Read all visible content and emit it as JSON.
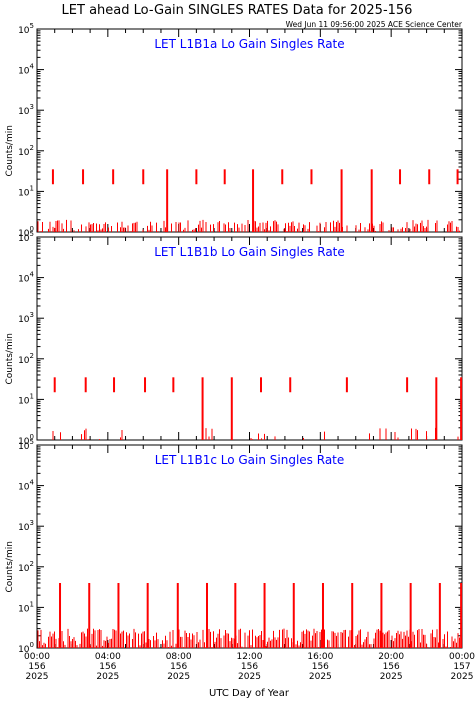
{
  "title": "LET ahead Lo-Gain SINGLES RATES Data for 2025-156",
  "timestamp": "Wed Jun 11 09:56:00 2025 ACE Science Center",
  "xlabel": "UTC Day of Year",
  "colors": {
    "axis": "#000000",
    "data": "#ff0000",
    "panel_title": "#0000ff"
  },
  "chart_data": [
    {
      "type": "line",
      "title": "LET L1B1a Lo Gain Singles Rate",
      "ylabel": "Counts/min",
      "yscale": "log",
      "ylim": [
        1,
        100000
      ],
      "ytick_exponents": [
        "0",
        "1",
        "2",
        "3",
        "4",
        "5"
      ],
      "xlim": [
        0,
        24
      ],
      "baseline": {
        "low": 1,
        "high": 2,
        "density": 0.55
      },
      "spikes": [
        {
          "x": 0.9,
          "peak": 35,
          "base": 15
        },
        {
          "x": 2.6,
          "peak": 35,
          "base": 15
        },
        {
          "x": 4.3,
          "peak": 35,
          "base": 15
        },
        {
          "x": 6.0,
          "peak": 35,
          "base": 15
        },
        {
          "x": 7.35,
          "peak": 35,
          "base": 1
        },
        {
          "x": 9.0,
          "peak": 35,
          "base": 15
        },
        {
          "x": 10.6,
          "peak": 35,
          "base": 15
        },
        {
          "x": 12.2,
          "peak": 35,
          "base": 1
        },
        {
          "x": 13.85,
          "peak": 35,
          "base": 15
        },
        {
          "x": 15.5,
          "peak": 35,
          "base": 15
        },
        {
          "x": 17.2,
          "peak": 35,
          "base": 1
        },
        {
          "x": 18.9,
          "peak": 35,
          "base": 1
        },
        {
          "x": 20.5,
          "peak": 35,
          "base": 15
        },
        {
          "x": 22.15,
          "peak": 35,
          "base": 15
        },
        {
          "x": 23.75,
          "peak": 35,
          "base": 15
        }
      ]
    },
    {
      "type": "line",
      "title": "LET L1B1b Lo Gain Singles Rate",
      "ylabel": "Counts/min",
      "yscale": "log",
      "ylim": [
        1,
        100000
      ],
      "ytick_exponents": [
        "0",
        "1",
        "2",
        "3",
        "4",
        "5"
      ],
      "xlim": [
        0,
        24
      ],
      "baseline": {
        "low": 1,
        "high": 2,
        "density": 0.1
      },
      "spikes": [
        {
          "x": 1.0,
          "peak": 35,
          "base": 15
        },
        {
          "x": 2.75,
          "peak": 35,
          "base": 15
        },
        {
          "x": 4.35,
          "peak": 35,
          "base": 15
        },
        {
          "x": 6.1,
          "peak": 35,
          "base": 15
        },
        {
          "x": 7.7,
          "peak": 35,
          "base": 15
        },
        {
          "x": 9.35,
          "peak": 35,
          "base": 1
        },
        {
          "x": 11.0,
          "peak": 35,
          "base": 1
        },
        {
          "x": 12.65,
          "peak": 35,
          "base": 15
        },
        {
          "x": 14.3,
          "peak": 35,
          "base": 15
        },
        {
          "x": 17.5,
          "peak": 35,
          "base": 15
        },
        {
          "x": 20.9,
          "peak": 35,
          "base": 15
        },
        {
          "x": 22.55,
          "peak": 35,
          "base": 1
        },
        {
          "x": 23.95,
          "peak": 35,
          "base": 1
        }
      ]
    },
    {
      "type": "line",
      "title": "LET L1B1c Lo Gain Singles Rate",
      "ylabel": "Counts/min",
      "yscale": "log",
      "ylim": [
        1,
        100000
      ],
      "ytick_exponents": [
        "0",
        "1",
        "2",
        "3",
        "4",
        "5"
      ],
      "xlim": [
        0,
        24
      ],
      "xticks": [
        {
          "time": "00:00",
          "day": "156",
          "year": "2025"
        },
        {
          "time": "04:00",
          "day": "156",
          "year": "2025"
        },
        {
          "time": "08:00",
          "day": "156",
          "year": "2025"
        },
        {
          "time": "12:00",
          "day": "156",
          "year": "2025"
        },
        {
          "time": "16:00",
          "day": "156",
          "year": "2025"
        },
        {
          "time": "20:00",
          "day": "156",
          "year": "2025"
        },
        {
          "time": "00:00",
          "day": "157",
          "year": "2025"
        }
      ],
      "baseline": {
        "low": 1,
        "high": 3,
        "density": 0.9
      },
      "spikes": [
        {
          "x": 1.3,
          "peak": 40,
          "base": 1
        },
        {
          "x": 2.95,
          "peak": 40,
          "base": 1
        },
        {
          "x": 4.6,
          "peak": 40,
          "base": 1
        },
        {
          "x": 6.25,
          "peak": 40,
          "base": 1
        },
        {
          "x": 7.95,
          "peak": 40,
          "base": 1
        },
        {
          "x": 9.6,
          "peak": 40,
          "base": 1
        },
        {
          "x": 11.2,
          "peak": 40,
          "base": 1
        },
        {
          "x": 12.85,
          "peak": 40,
          "base": 1
        },
        {
          "x": 14.5,
          "peak": 40,
          "base": 1
        },
        {
          "x": 16.15,
          "peak": 40,
          "base": 1
        },
        {
          "x": 17.8,
          "peak": 40,
          "base": 1
        },
        {
          "x": 19.45,
          "peak": 40,
          "base": 1
        },
        {
          "x": 21.1,
          "peak": 40,
          "base": 1
        },
        {
          "x": 22.75,
          "peak": 40,
          "base": 1
        },
        {
          "x": 23.95,
          "peak": 40,
          "base": 1
        }
      ]
    }
  ]
}
